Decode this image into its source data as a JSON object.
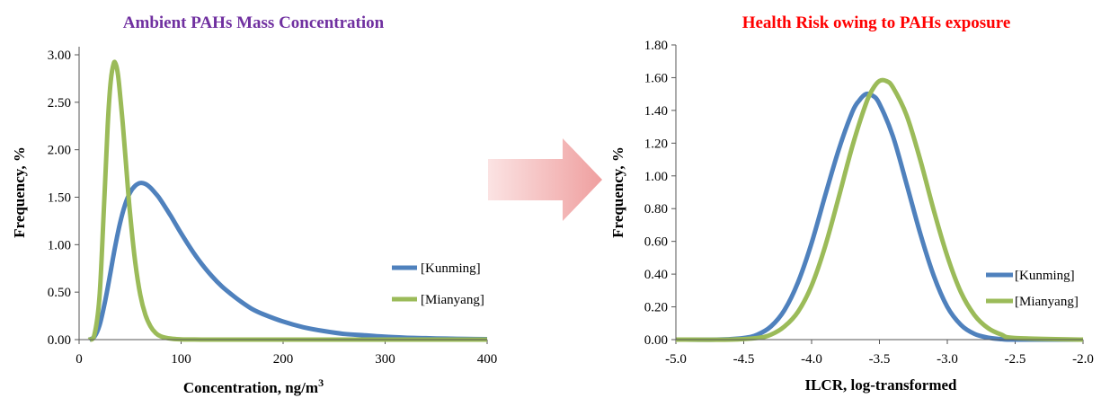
{
  "chart_data": [
    {
      "type": "line",
      "title": "Ambient PAHs Mass Concentration",
      "title_color": "#7030A0",
      "xlabel": "Concentration, ng/m",
      "xlabel_superscript": "3",
      "ylabel": "Frequency, %",
      "xlim": [
        0,
        400
      ],
      "ylim": [
        0,
        3.0
      ],
      "xticks": [
        "0",
        "100",
        "200",
        "300",
        "400"
      ],
      "yticks": [
        "0.00",
        "0.50",
        "1.00",
        "1.50",
        "2.00",
        "2.50",
        "3.00"
      ],
      "grid": false,
      "legend_position": "right",
      "series": [
        {
          "name": "[Kunming]",
          "color": "#4F81BD",
          "x": [
            10,
            15,
            20,
            25,
            30,
            35,
            40,
            45,
            50,
            55,
            60,
            65,
            70,
            75,
            80,
            90,
            100,
            110,
            120,
            130,
            140,
            150,
            160,
            170,
            180,
            200,
            220,
            240,
            260,
            280,
            300,
            320,
            340,
            360,
            380,
            400
          ],
          "y": [
            0.0,
            0.03,
            0.15,
            0.38,
            0.66,
            0.96,
            1.22,
            1.42,
            1.55,
            1.62,
            1.65,
            1.64,
            1.6,
            1.54,
            1.47,
            1.3,
            1.12,
            0.95,
            0.8,
            0.67,
            0.56,
            0.47,
            0.39,
            0.32,
            0.27,
            0.19,
            0.13,
            0.09,
            0.06,
            0.045,
            0.03,
            0.02,
            0.015,
            0.01,
            0.007,
            0.005
          ]
        },
        {
          "name": "[Mianyang]",
          "color": "#9BBB59",
          "x": [
            10,
            15,
            20,
            24,
            28,
            31,
            34,
            36,
            38,
            40,
            43,
            46,
            50,
            55,
            60,
            65,
            70,
            75,
            80,
            90,
            100,
            120,
            150,
            200,
            300,
            400
          ],
          "y": [
            0.0,
            0.05,
            0.45,
            1.3,
            2.25,
            2.72,
            2.91,
            2.9,
            2.8,
            2.6,
            2.25,
            1.85,
            1.32,
            0.82,
            0.47,
            0.26,
            0.14,
            0.07,
            0.035,
            0.01,
            0.003,
            0.0,
            0.0,
            0.0,
            0.0,
            0.0
          ]
        }
      ]
    },
    {
      "type": "line",
      "title": "Health Risk owing to PAHs exposure",
      "title_color": "#FF0000",
      "xlabel": "ILCR, log-transformed",
      "ylabel": "Frequency, %",
      "xlim": [
        -5.0,
        -2.0
      ],
      "ylim": [
        0,
        1.8
      ],
      "xticks": [
        "-5.0",
        "-4.5",
        "-4.0",
        "-3.5",
        "-3.0",
        "-2.5",
        "-2.0"
      ],
      "yticks": [
        "0.00",
        "0.20",
        "0.40",
        "0.60",
        "0.80",
        "1.00",
        "1.20",
        "1.40",
        "1.60",
        "1.80"
      ],
      "grid": false,
      "legend_position": "bottom-right",
      "series": [
        {
          "name": "[Kunming]",
          "color": "#4F81BD",
          "x": [
            -5.0,
            -4.7,
            -4.5,
            -4.4,
            -4.3,
            -4.2,
            -4.1,
            -4.0,
            -3.9,
            -3.8,
            -3.7,
            -3.65,
            -3.6,
            -3.55,
            -3.5,
            -3.4,
            -3.3,
            -3.2,
            -3.1,
            -3.0,
            -2.9,
            -2.8,
            -2.7,
            -2.6,
            -2.5,
            -2.0
          ],
          "y": [
            0.0,
            0.0,
            0.01,
            0.03,
            0.08,
            0.18,
            0.35,
            0.59,
            0.88,
            1.16,
            1.39,
            1.46,
            1.5,
            1.49,
            1.44,
            1.24,
            0.95,
            0.65,
            0.39,
            0.2,
            0.09,
            0.035,
            0.012,
            0.003,
            0.0,
            0.0
          ]
        },
        {
          "name": "[Mianyang]",
          "color": "#9BBB59",
          "x": [
            -5.0,
            -4.6,
            -4.4,
            -4.3,
            -4.2,
            -4.1,
            -4.0,
            -3.9,
            -3.8,
            -3.7,
            -3.6,
            -3.55,
            -3.5,
            -3.45,
            -3.4,
            -3.3,
            -3.2,
            -3.1,
            -3.0,
            -2.9,
            -2.8,
            -2.7,
            -2.6,
            -2.5,
            -2.0
          ],
          "y": [
            0.0,
            0.0,
            0.01,
            0.03,
            0.08,
            0.17,
            0.33,
            0.57,
            0.87,
            1.18,
            1.44,
            1.53,
            1.58,
            1.58,
            1.54,
            1.37,
            1.1,
            0.79,
            0.51,
            0.29,
            0.15,
            0.07,
            0.03,
            0.01,
            0.0
          ]
        }
      ]
    }
  ]
}
